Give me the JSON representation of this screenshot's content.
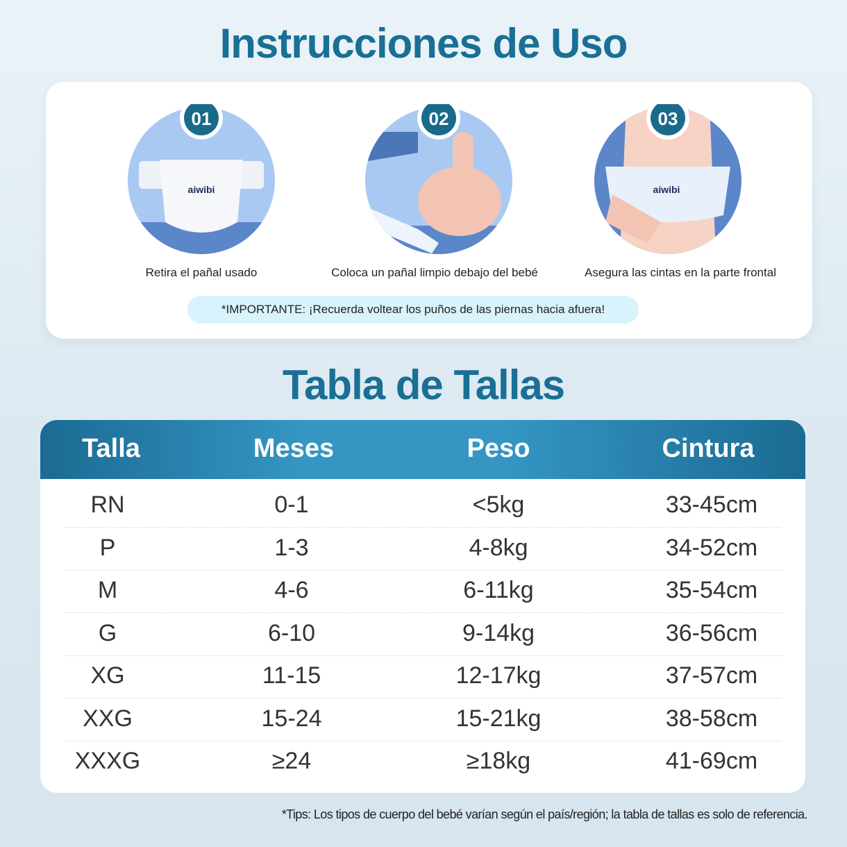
{
  "instructions": {
    "title": "Instrucciones de Uso",
    "steps": [
      {
        "number": "01",
        "caption": "Retira el pañal usado",
        "brand": "aiwibi"
      },
      {
        "number": "02",
        "caption": "Coloca un pañal limpio debajo del bebé"
      },
      {
        "number": "03",
        "caption": "Asegura las cintas en la parte frontal",
        "brand": "aiwibi"
      }
    ],
    "important": "*IMPORTANTE: ¡Recuerda voltear los puños de las piernas hacia afuera!"
  },
  "size_table": {
    "title": "Tabla de Tallas",
    "headers": [
      "Talla",
      "Meses",
      "Peso",
      "Cintura"
    ],
    "rows": [
      [
        "RN",
        "0-1",
        "<5kg",
        "33-45cm"
      ],
      [
        "P",
        "1-3",
        "4-8kg",
        "34-52cm"
      ],
      [
        "M",
        "4-6",
        "6-11kg",
        "35-54cm"
      ],
      [
        "G",
        "6-10",
        "9-14kg",
        "36-56cm"
      ],
      [
        "XG",
        "11-15",
        "12-17kg",
        "37-57cm"
      ],
      [
        "XXG",
        "15-24",
        "15-21kg",
        "38-58cm"
      ],
      [
        "XXXG",
        "≥24",
        "≥18kg",
        "41-69cm"
      ]
    ]
  },
  "footnote": "*Tips: Los tipos de cuerpo del bebé varían según el país/región; la tabla de tallas es solo de referencia.",
  "colors": {
    "title": "#1a6f95",
    "badge": "#1a6a8a",
    "header": "#3596c4",
    "pill": "#d8f3fb"
  }
}
